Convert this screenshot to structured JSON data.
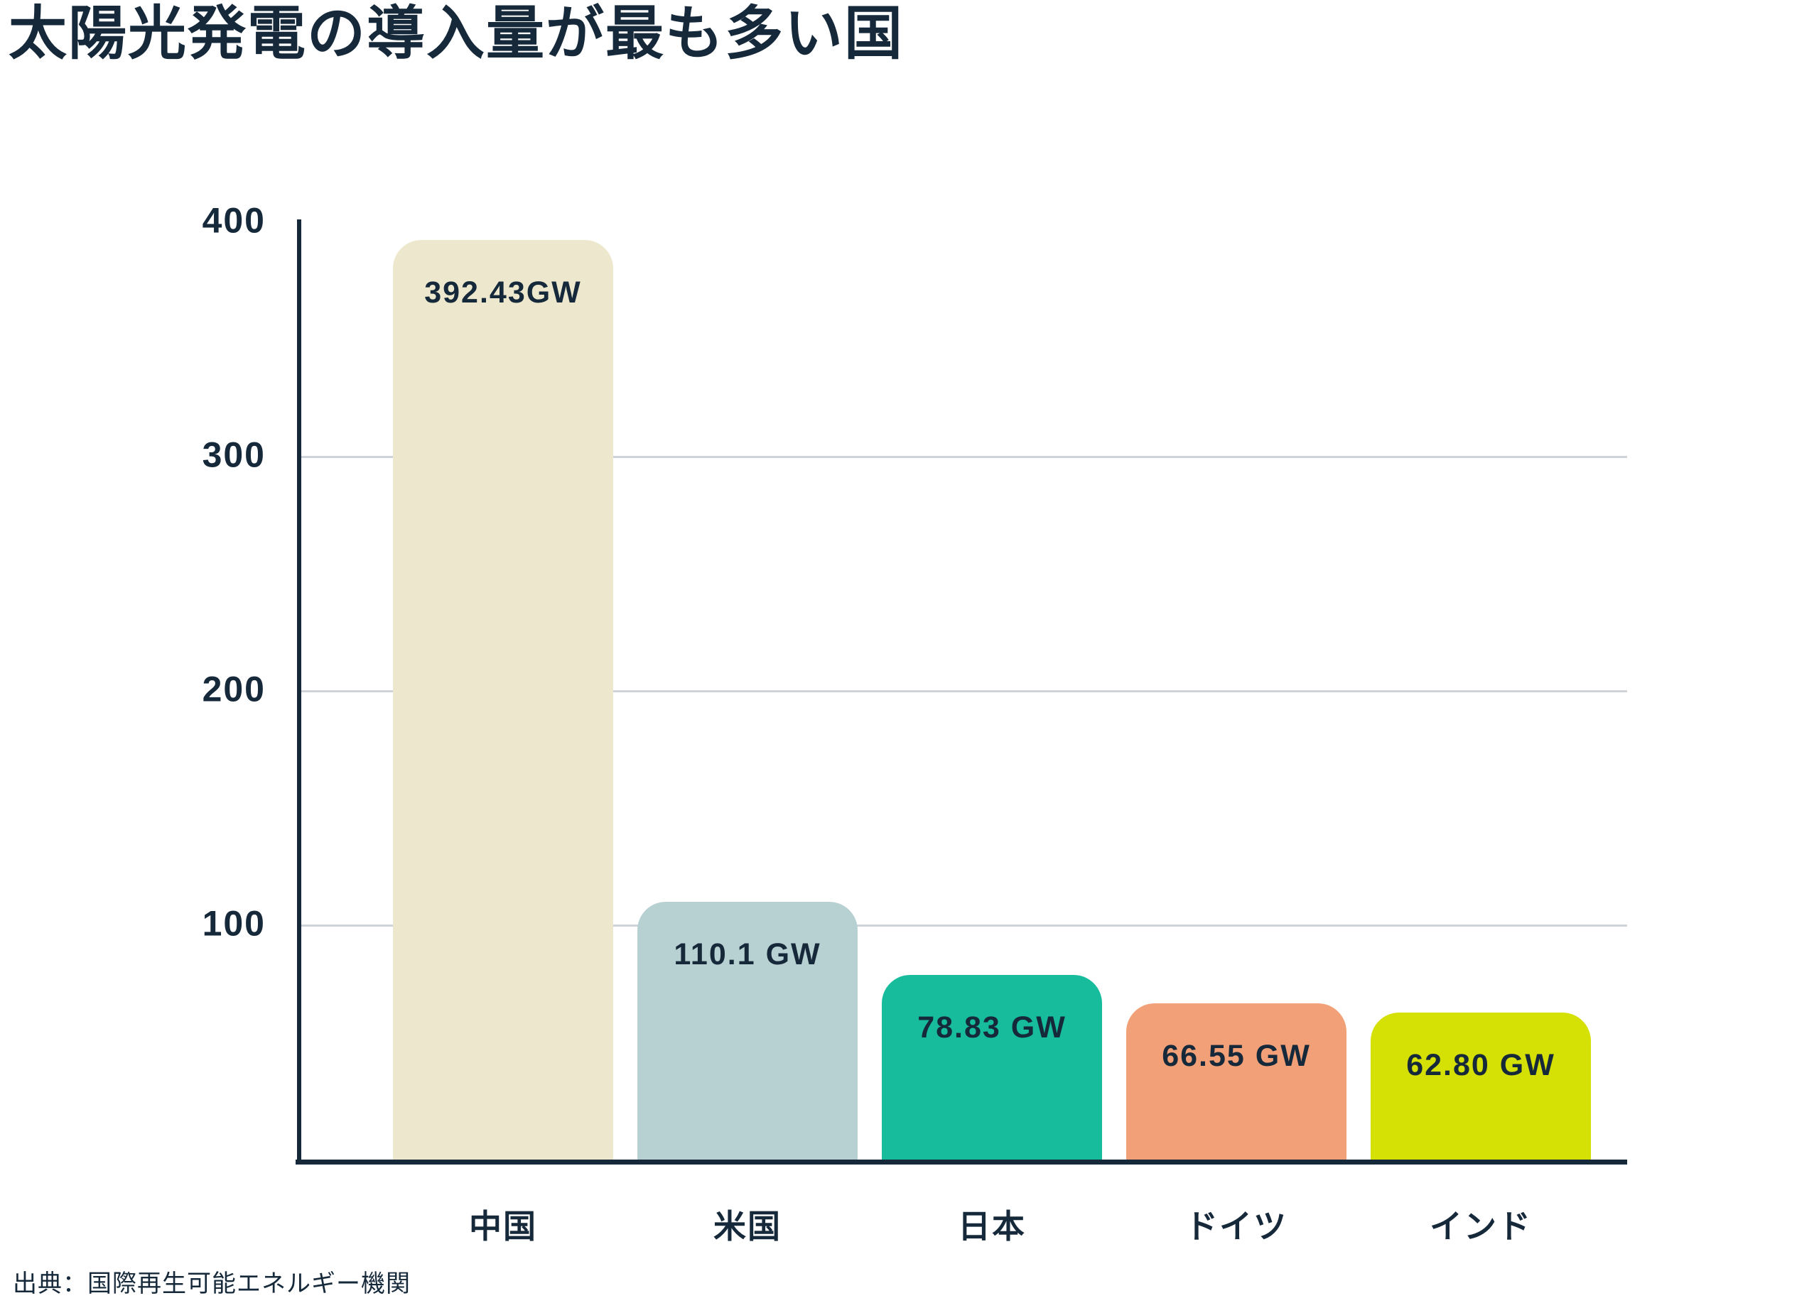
{
  "chart_data": {
    "type": "bar",
    "title": "太陽光発電の導入量が最も多い国",
    "categories": [
      "中国",
      "米国",
      "日本",
      "ドイツ",
      "インド"
    ],
    "values": [
      392.43,
      110.1,
      78.83,
      66.55,
      62.8
    ],
    "value_labels": [
      "392.43GW",
      "110.1 GW",
      "78.83 GW",
      "66.55 GW",
      "62.80 GW"
    ],
    "colors": [
      "#EDE8CD",
      "#B7D0D1",
      "#16BC9C",
      "#F1A078",
      "#D5E005"
    ],
    "unit": "GW",
    "xlabel": "",
    "ylabel": "",
    "ylim": [
      0,
      400
    ],
    "yticks": [
      100,
      200,
      300,
      400
    ],
    "ytick_labels": [
      "100",
      "200",
      "300",
      "400"
    ],
    "gridline_values": [
      100,
      200,
      300
    ],
    "grid": "horizontal gridlines at 100, 200, 300; none at 400",
    "legend": "none",
    "source_note": "出典：国際再生可能エネルギー機関",
    "text_color": "#16293A",
    "axis_color": "#16293A",
    "gridline_color": "#CFD4DB",
    "background_color": "#FFFFFF"
  }
}
